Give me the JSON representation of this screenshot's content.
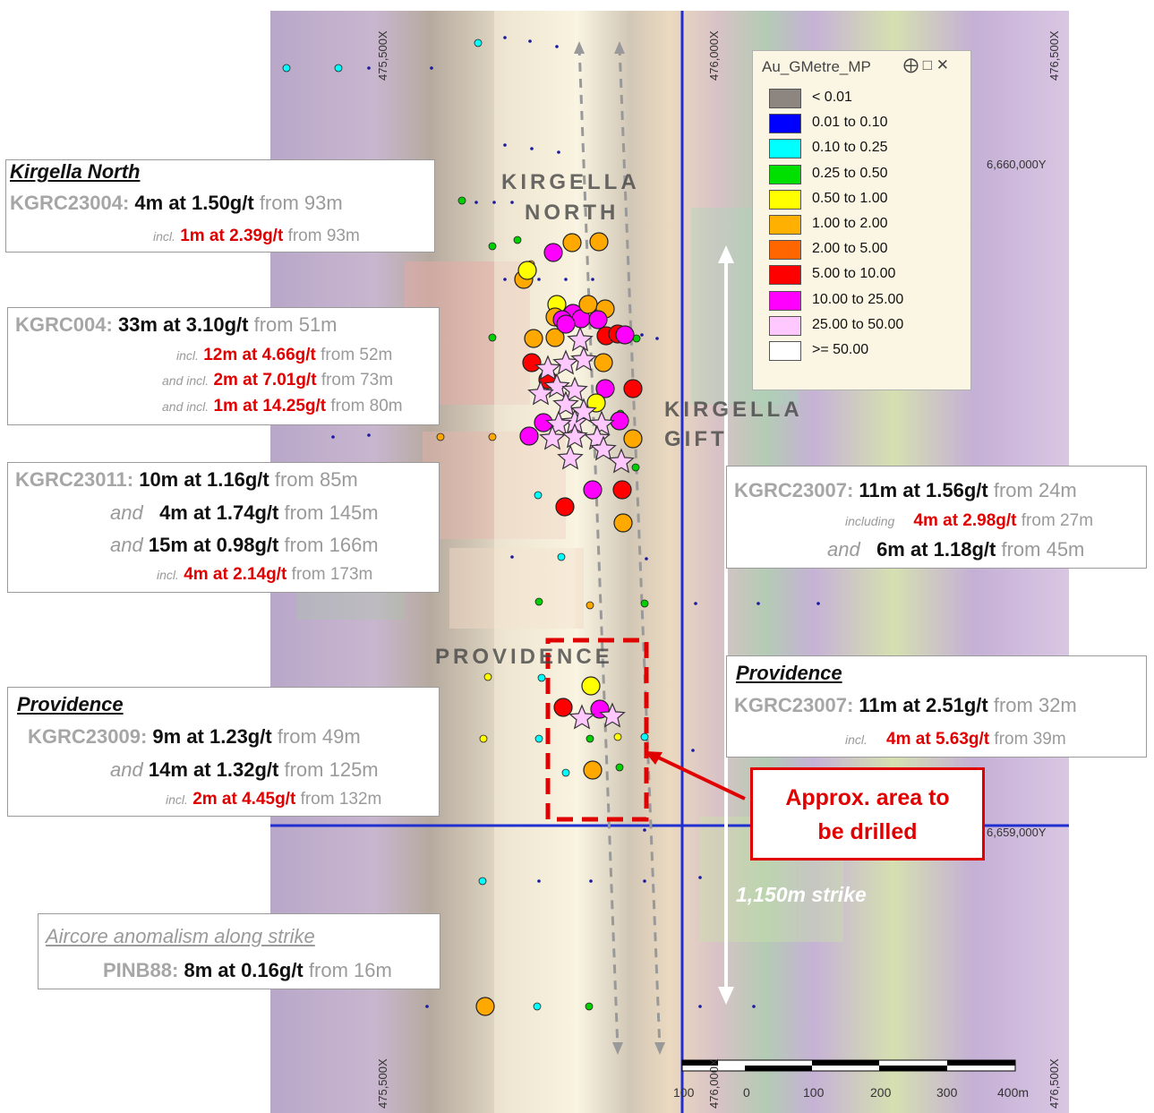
{
  "legend": {
    "title": "Au_GMetre_MP",
    "buttons": "⨁ □ ✕",
    "items": [
      {
        "label": "< 0.01",
        "color": "#8c8580"
      },
      {
        "label": "0.01 to 0.10",
        "color": "#0000ff"
      },
      {
        "label": "0.10 to 0.25",
        "color": "#00ffff"
      },
      {
        "label": "0.25 to 0.50",
        "color": "#00e000"
      },
      {
        "label": "0.50 to 1.00",
        "color": "#ffff00"
      },
      {
        "label": "1.00 to 2.00",
        "color": "#ffb000"
      },
      {
        "label": "2.00 to 5.00",
        "color": "#ff6600"
      },
      {
        "label": "5.00 to 10.00",
        "color": "#ff0000"
      },
      {
        "label": "10.00 to 25.00",
        "color": "#ff00ff"
      },
      {
        "label": "25.00 to 50.00",
        "color": "#ffc8ff"
      },
      {
        "label": ">= 50.00",
        "color": "#ffffff"
      }
    ]
  },
  "map_labels": {
    "kirgella_north_1": "KIRGELLA",
    "kirgella_north_2": "NORTH",
    "kirgella_gift_1": "KIRGELLA",
    "kirgella_gift_2": "GIFT",
    "providence": "PROVIDENCE",
    "strike": "1,150m strike"
  },
  "grid_labels": {
    "easting_left": "475,500X",
    "easting_mid": "476,000X",
    "easting_right": "476,500X",
    "northing_top": "6,660,000Y",
    "northing_bottom": "6,659,000Y"
  },
  "scale_bar": {
    "ticks": [
      "100",
      "0",
      "100",
      "200",
      "300",
      "400m"
    ]
  },
  "callouts": {
    "kirgella_north": {
      "heading": "Kirgella North",
      "hole": "KGRC23004:",
      "result": "4m at 1.50g/t",
      "from": "from 93m",
      "incl_word": "incl.",
      "incl_result": "1m at 2.39g/t",
      "incl_from": "from 93m"
    },
    "kgrc004": {
      "hole": "KGRC004:",
      "result": "33m at 3.10g/t",
      "from": "from 51m",
      "l2_word": "incl.",
      "l2_result": "12m at 4.66g/t",
      "l2_from": "from 52m",
      "l3_word": "and incl.",
      "l3_result": "2m at 7.01g/t",
      "l3_from": "from 73m",
      "l4_word": "and incl.",
      "l4_result": "1m at 14.25g/t",
      "l4_from": "from 80m"
    },
    "kgrc23011": {
      "hole": "KGRC23011:",
      "result": "10m at 1.16g/t",
      "from": "from 85m",
      "l2_word": "and",
      "l2_result": "4m at 1.74g/t",
      "l2_from": "from 145m",
      "l3_word": "and",
      "l3_result": "15m at 0.98g/t",
      "l3_from": "from 166m",
      "l4_word": "incl.",
      "l4_result": "4m at 2.14g/t",
      "l4_from": "from 173m"
    },
    "kgrc23007_gift": {
      "hole": "KGRC23007:",
      "result": "11m at 1.56g/t",
      "from": "from 24m",
      "l2_word": "including",
      "l2_result": "4m at 2.98g/t",
      "l2_from": "from 27m",
      "l3_word": "and",
      "l3_result": "6m at 1.18g/t",
      "l3_from": "from 45m"
    },
    "providence_right": {
      "heading": "Providence",
      "hole": "KGRC23007:",
      "result": "11m at 2.51g/t",
      "from": "from 32m",
      "l2_word": "incl.",
      "l2_result": "4m at 5.63g/t",
      "l2_from": "from 39m"
    },
    "providence_left": {
      "heading": "Providence",
      "hole": "KGRC23009:",
      "result": "9m at 1.23g/t",
      "from": "from 49m",
      "l2_word": "and",
      "l2_result": "14m at 1.32g/t",
      "l2_from": "from 125m",
      "l3_word": "incl.",
      "l3_result": "2m at 4.45g/t",
      "l3_from": "from 132m"
    },
    "aircore": {
      "heading": "Aircore anomalism along strike",
      "hole": "PINB88:",
      "result": "8m at 0.16g/t",
      "from": "from 16m"
    }
  },
  "drill_box": {
    "line1": "Approx. area to",
    "line2": "be drilled"
  }
}
